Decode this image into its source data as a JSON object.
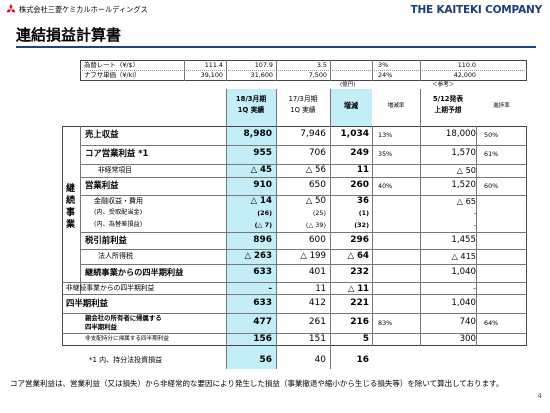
{
  "header": {
    "company_jp": "株式会社三菱ケミカルホールディングス",
    "company_en": "THE KAITEKI COMPANY",
    "title": "連結損益計算書"
  },
  "assumptions": {
    "rows": [
      {
        "label": "為替レート（¥/$）",
        "vals": [
          "111.4",
          "107.9",
          "3.5",
          "3%",
          "110.0"
        ]
      },
      {
        "label": "ナフサ単価（¥/kl）",
        "vals": [
          "39,100",
          "31,600",
          "7,500",
          "24%",
          "42,000"
        ]
      }
    ],
    "unit": "(億円)",
    "ref": "＜参考＞"
  },
  "columns": {
    "c1_line1": "18/3月期",
    "c1_line2": "1Q 実績",
    "c2_line1": "17/3月期",
    "c2_line2": "1Q 実績",
    "c3": "増減",
    "c4": "増減率",
    "c5_line1": "5/12発表",
    "c5_line2": "上期予想",
    "c6": "進捗率"
  },
  "group_label": "継続事業",
  "rows": [
    {
      "label": "売上収益",
      "v1": "8,980",
      "v2": "7,946",
      "v3": "1,034",
      "rate": "13%",
      "fc": "18,000",
      "prog": "50%"
    },
    {
      "label": "コア営業利益 *1",
      "v1": "955",
      "v2": "706",
      "v3": "249",
      "rate": "35%",
      "fc": "1,570",
      "prog": "61%"
    },
    {
      "label": "非経常項目",
      "v1": "△ 45",
      "v2": "△ 56",
      "v3": "11",
      "rate": "",
      "fc": "△ 50",
      "prog": ""
    },
    {
      "label": "営業利益",
      "v1": "910",
      "v2": "650",
      "v3": "260",
      "rate": "40%",
      "fc": "1,520",
      "prog": "60%"
    },
    {
      "label": "金融収益・費用",
      "v1": "△ 14",
      "v2": "△ 50",
      "v3": "36",
      "rate": "",
      "fc": "△ 65",
      "prog": ""
    },
    {
      "label": "(内、受取配当金)",
      "v1": "(26)",
      "v2": "(25)",
      "v3": "(1)",
      "rate": "",
      "fc": "-",
      "prog": ""
    },
    {
      "label": "(内、為替差損益)",
      "v1": "(△ 7)",
      "v2": "(△ 39)",
      "v3": "(32)",
      "rate": "",
      "fc": "-",
      "prog": ""
    },
    {
      "label": "税引前利益",
      "v1": "896",
      "v2": "600",
      "v3": "296",
      "rate": "",
      "fc": "1,455",
      "prog": ""
    },
    {
      "label": "法人所得税",
      "v1": "△ 263",
      "v2": "△ 199",
      "v3": "△ 64",
      "rate": "",
      "fc": "△ 415",
      "prog": ""
    },
    {
      "label": "継続事業からの四半期利益",
      "v1": "633",
      "v2": "401",
      "v3": "232",
      "rate": "",
      "fc": "1,040",
      "prog": ""
    },
    {
      "label": "非継続事業からの四半期利益",
      "v1": "-",
      "v2": "11",
      "v3": "△ 11",
      "rate": "",
      "fc": "-",
      "prog": ""
    },
    {
      "label": "四半期利益",
      "v1": "633",
      "v2": "412",
      "v3": "221",
      "rate": "",
      "fc": "1,040",
      "prog": ""
    },
    {
      "label_line1": "親会社の所有者に帰属する",
      "label_line2": "四半期利益",
      "v1": "477",
      "v2": "261",
      "v3": "216",
      "rate": "83%",
      "fc": "740",
      "prog": "64%"
    },
    {
      "label": "非支配持分に帰属する四半期利益",
      "v1": "156",
      "v2": "151",
      "v3": "5",
      "rate": "",
      "fc": "300",
      "prog": ""
    }
  ],
  "note_row": {
    "label": "*1 内、持分法投資損益",
    "v1": "56",
    "v2": "40",
    "v3": "16"
  },
  "footnote": "コア営業利益は、営業利益（又は損失）から非経常的な要因により発生した損益（事業撤退や縮小から生じる損失等）を除いて算出しております。",
  "page_number": "4",
  "colors": {
    "accent": "#1f3f88",
    "brand_text": "#1c3f7a",
    "highlight": "#c3edf7",
    "logo": "#e60012"
  }
}
